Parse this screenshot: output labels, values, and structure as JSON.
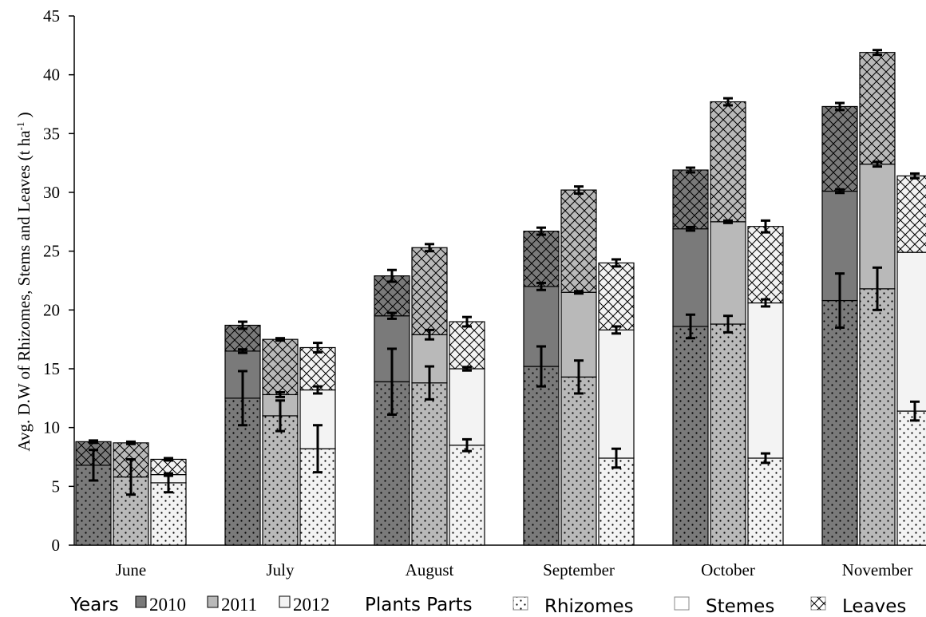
{
  "chart_data": {
    "type": "bar",
    "stacked": true,
    "ylabel_main": "Avg. D.W of Rhizomes, Stems and Leaves  (t ha",
    "ylabel_sup": "-1",
    "ylabel_end": " )",
    "ylim": [
      0,
      45
    ],
    "yticks": [
      "0",
      "5",
      "10",
      "15",
      "20",
      "25",
      "30",
      "35",
      "40",
      "45"
    ],
    "categories": [
      "June",
      "July",
      "August",
      "September",
      "October",
      "November"
    ],
    "years": [
      "2010",
      "2011",
      "2012"
    ],
    "year_colors": {
      "2010": "#7a7a7a",
      "2011": "#b9b9b9",
      "2012": "#f3f3f3"
    },
    "parts": [
      "Rhizomes",
      "Stemes",
      "Leaves"
    ],
    "data": {
      "2010": {
        "Rhizomes": [
          6.8,
          12.5,
          13.9,
          15.2,
          18.6,
          20.8
        ],
        "Stemes": [
          0.0,
          4.0,
          5.6,
          6.8,
          8.3,
          9.3
        ],
        "Leaves": [
          2.0,
          2.2,
          3.4,
          4.7,
          5.0,
          7.2
        ]
      },
      "2011": {
        "Rhizomes": [
          5.8,
          11.0,
          13.8,
          14.3,
          18.8,
          21.8
        ],
        "Stemes": [
          0.0,
          1.8,
          4.1,
          7.2,
          8.7,
          10.6
        ],
        "Leaves": [
          2.9,
          4.7,
          7.4,
          8.7,
          10.2,
          9.5
        ]
      },
      "2012": {
        "Rhizomes": [
          5.3,
          8.2,
          8.5,
          7.4,
          7.4,
          11.4
        ],
        "Stemes": [
          0.7,
          5.0,
          6.5,
          10.9,
          13.2,
          13.5
        ],
        "Leaves": [
          1.3,
          3.6,
          4.0,
          5.7,
          6.5,
          6.5
        ]
      }
    },
    "error_bars": {
      "2010": {
        "Rhizomes": [
          1.3,
          2.3,
          2.8,
          1.7,
          1.0,
          2.3
        ],
        "Stemes": [
          0.0,
          0.15,
          0.25,
          0.3,
          0.15,
          0.15
        ],
        "Leaves": [
          0.1,
          0.3,
          0.5,
          0.3,
          0.2,
          0.3
        ]
      },
      "2011": {
        "Rhizomes": [
          1.5,
          1.3,
          1.4,
          1.4,
          0.7,
          1.8
        ],
        "Stemes": [
          0.0,
          0.2,
          0.4,
          0.1,
          0.1,
          0.2
        ],
        "Leaves": [
          0.1,
          0.1,
          0.3,
          0.3,
          0.3,
          0.2
        ]
      },
      "2012": {
        "Rhizomes": [
          0.8,
          2.0,
          0.5,
          0.8,
          0.4,
          0.8
        ],
        "Stemes": [
          0.1,
          0.3,
          0.15,
          0.3,
          0.3,
          0.0
        ],
        "Leaves": [
          0.1,
          0.4,
          0.4,
          0.3,
          0.5,
          0.2
        ]
      }
    },
    "legend": {
      "position": "bottom",
      "years_title": "Years",
      "parts_title": "Plants Parts",
      "parts_labels": [
        "Rhizomes",
        "Stemes",
        "Leaves"
      ]
    },
    "grid": false
  }
}
